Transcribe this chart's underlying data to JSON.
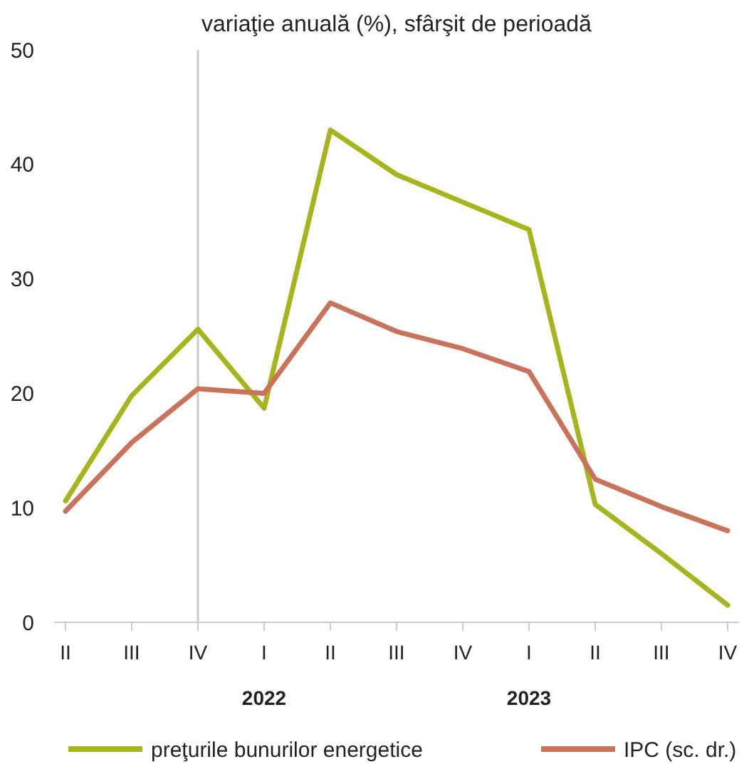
{
  "chart_data": {
    "type": "line",
    "title": "variaţie anuală (%), sfârşit de perioadă",
    "categories": [
      "II",
      "III",
      "IV",
      "I",
      "II",
      "III",
      "IV",
      "I",
      "II",
      "III",
      "IV"
    ],
    "series": [
      {
        "name": "preţurile bunurilor energetice",
        "color": "#a7b51c",
        "values": [
          10.6,
          19.8,
          25.6,
          18.7,
          43.0,
          39.1,
          36.7,
          34.3,
          10.3,
          6.0,
          1.5
        ]
      },
      {
        "name": "IPC (sc. dr.)",
        "color": "#c8735a",
        "values": [
          9.7,
          15.7,
          20.4,
          20.0,
          27.9,
          25.4,
          23.9,
          21.9,
          12.5,
          10.1,
          8.0
        ]
      }
    ],
    "ylim": [
      0,
      50
    ],
    "yticks": [
      0,
      10,
      20,
      30,
      40,
      50
    ],
    "ref_lines": [
      {
        "axis": "x",
        "value": "IV",
        "color": "#cccccc"
      }
    ],
    "annotations": [
      "2022",
      "2023"
    ],
    "grid": false,
    "legend": "bottom",
    "marker": "none",
    "line_style": "solid"
  }
}
